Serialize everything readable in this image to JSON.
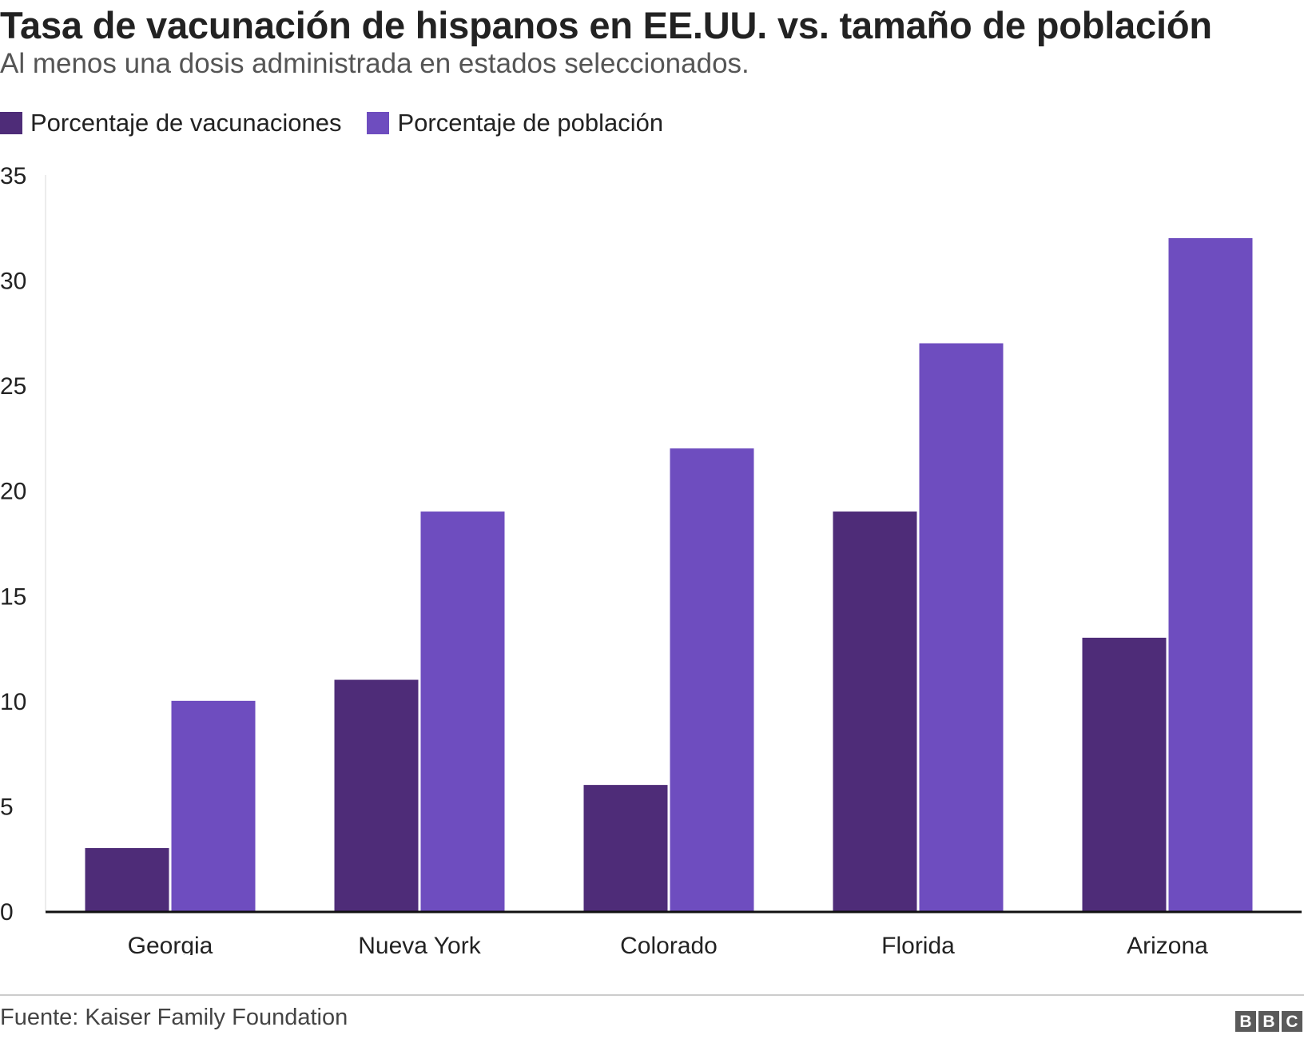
{
  "header": {
    "title": "Tasa de vacunación de hispanos en EE.UU. vs. tamaño de población",
    "subtitle": "Al menos una dosis administrada en estados seleccionados."
  },
  "legend": {
    "items": [
      {
        "label": "Porcentaje de vacunaciones",
        "color": "#4e2c78"
      },
      {
        "label": "Porcentaje de población",
        "color": "#6e4dbf"
      }
    ]
  },
  "footer": {
    "source": "Fuente: Kaiser Family Foundation",
    "logo_letters": [
      "B",
      "B",
      "C"
    ]
  },
  "chart_data": {
    "type": "bar",
    "title": "Tasa de vacunación de hispanos en EE.UU. vs. tamaño de población",
    "subtitle": "Al menos una dosis administrada en estados seleccionados.",
    "categories": [
      "Georgia",
      "Nueva York",
      "Colorado",
      "Florida",
      "Arizona"
    ],
    "series": [
      {
        "name": "Porcentaje de vacunaciones",
        "values": [
          3,
          11,
          6,
          19,
          13
        ],
        "color": "#4e2c78"
      },
      {
        "name": "Porcentaje de población",
        "values": [
          10,
          19,
          22,
          27,
          32
        ],
        "color": "#6e4dbf"
      }
    ],
    "ylim": [
      0,
      35
    ],
    "yticks": [
      0,
      5,
      10,
      15,
      20,
      25,
      30,
      35
    ],
    "xlabel": "",
    "ylabel": "",
    "grid": false,
    "legend_position": "top-left"
  }
}
